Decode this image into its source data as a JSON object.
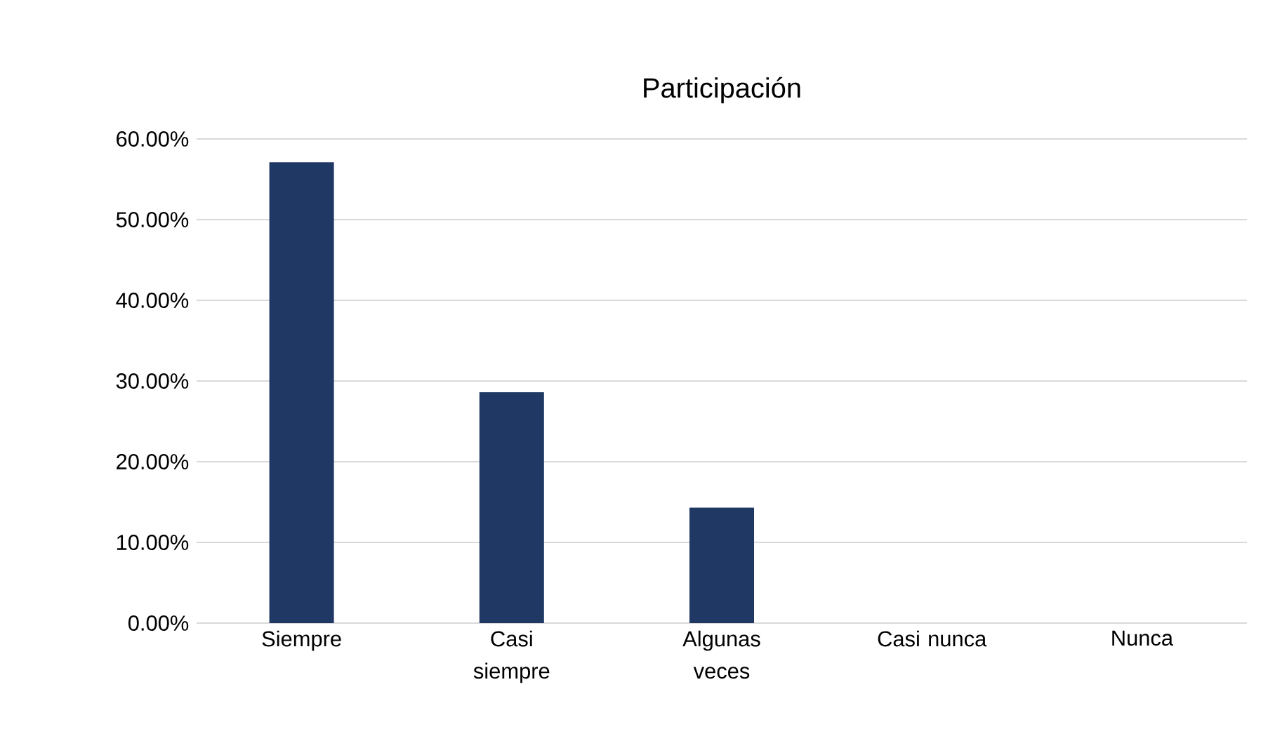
{
  "chart_data": {
    "type": "bar",
    "title": "Participación",
    "categories": [
      "Siempre",
      "Casi siempre",
      "Algunas veces",
      "Casi nunca",
      "Nunca"
    ],
    "values": [
      57.1,
      28.6,
      14.3,
      0,
      0
    ],
    "color": "#203864",
    "ylim": [
      0,
      60
    ],
    "yticks": [
      {
        "value": 0,
        "label": "0.00%"
      },
      {
        "value": 10,
        "label": "10.00%"
      },
      {
        "value": 20,
        "label": "20.00%"
      },
      {
        "value": 30,
        "label": "30.00%"
      },
      {
        "value": 40,
        "label": "40.00%"
      },
      {
        "value": 50,
        "label": "50.00%"
      },
      {
        "value": 60,
        "label": "60.00%"
      }
    ],
    "grid": "y"
  }
}
